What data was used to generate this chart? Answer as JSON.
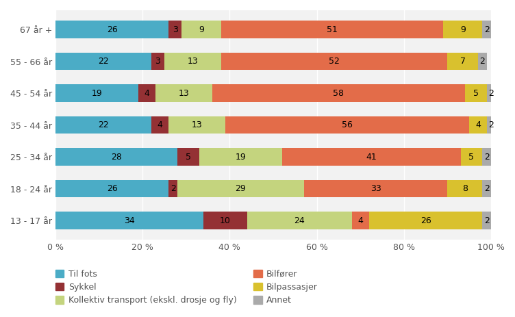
{
  "categories": [
    "13 - 17 år",
    "18 - 24 år",
    "25 - 34 år",
    "35 - 44 år",
    "45 - 54 år",
    "55 - 66 år",
    "67 år +"
  ],
  "series": {
    "Til fots": [
      34,
      26,
      28,
      22,
      19,
      22,
      26
    ],
    "Sykkel": [
      10,
      2,
      5,
      4,
      4,
      3,
      3
    ],
    "Kollektiv transport (ekskl. drosje og fly)": [
      24,
      29,
      19,
      13,
      13,
      13,
      9
    ],
    "Bilfører": [
      4,
      33,
      41,
      56,
      58,
      52,
      51
    ],
    "Bilpassasjer": [
      26,
      8,
      5,
      4,
      5,
      7,
      9
    ],
    "Annet": [
      2,
      2,
      2,
      2,
      2,
      2,
      2
    ]
  },
  "colors": {
    "Til fots": "#4BACC6",
    "Sykkel": "#943134",
    "Kollektiv transport (ekskl. drosje og fly)": "#C4D47E",
    "Bilfører": "#E36C49",
    "Bilpassasjer": "#D9C12E",
    "Annet": "#AAAAAA"
  },
  "xlim": [
    0,
    100
  ],
  "xticks": [
    0,
    20,
    40,
    60,
    80,
    100
  ],
  "xticklabels": [
    "0 %",
    "20 %",
    "40 %",
    "60 %",
    "80 %",
    "100 %"
  ],
  "background_color": "#FFFFFF",
  "plot_area_color": "#F2F2F2",
  "bar_height": 0.55,
  "fontsize_bar": 9,
  "fontsize_axis": 9,
  "fontsize_legend": 9,
  "legend_col1": [
    "Til fots",
    "Kollektiv transport (ekskl. drosje og fly)",
    "Bilpassasjer"
  ],
  "legend_col2": [
    "Sykkel",
    "Bilfører",
    "Annet"
  ]
}
